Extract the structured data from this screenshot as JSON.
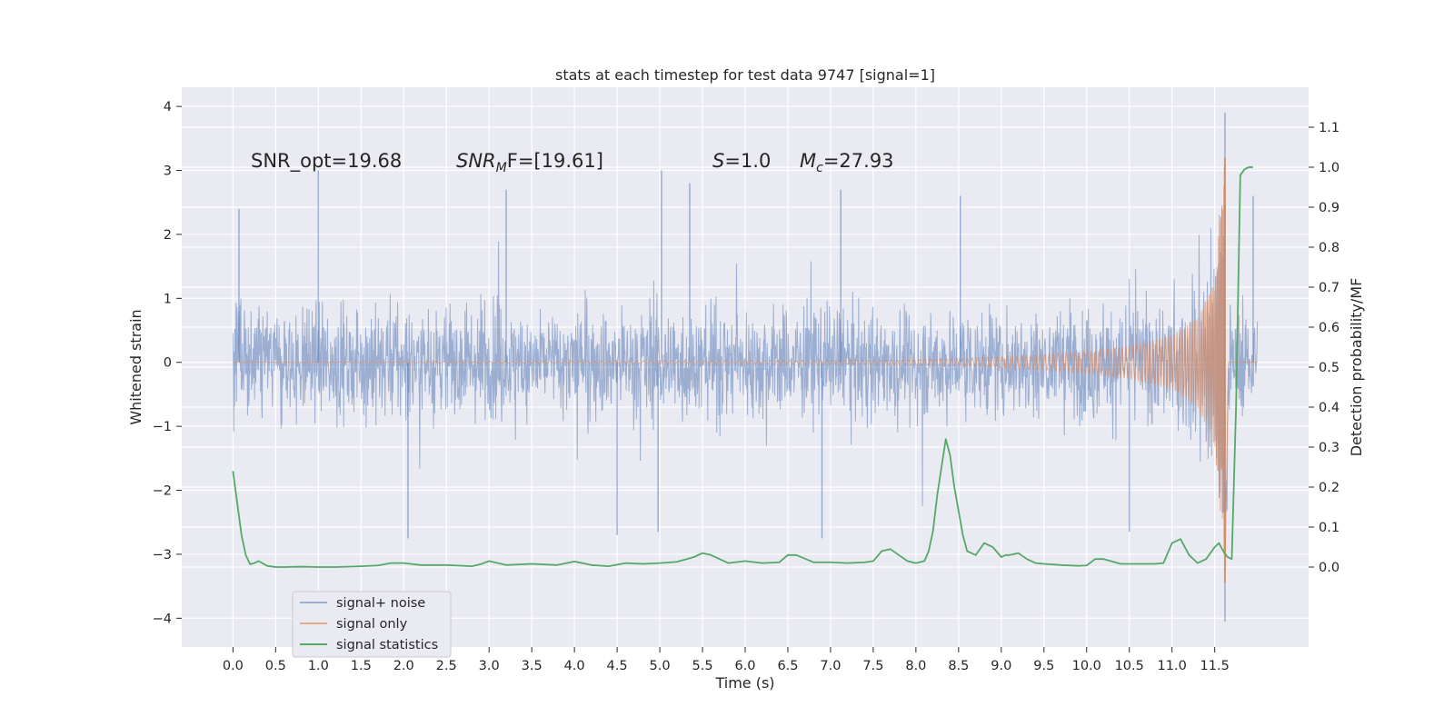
{
  "chart_data": {
    "type": "line",
    "title": "stats at each timestep for test data 9747 [signal=1]",
    "xlabel": "Time (s)",
    "ylabel": "Whitened strain",
    "y2label": "Detection probability/MF",
    "xlim": [
      -0.6,
      12.6
    ],
    "ylim": [
      -4.45,
      4.3
    ],
    "y2lim": [
      -0.2,
      1.2
    ],
    "x_ticks": [
      "0.0",
      "0.5",
      "1.0",
      "1.5",
      "2.0",
      "2.5",
      "3.0",
      "3.5",
      "4.0",
      "4.5",
      "5.0",
      "5.5",
      "6.0",
      "6.5",
      "7.0",
      "7.5",
      "8.0",
      "8.5",
      "9.0",
      "9.5",
      "10.0",
      "10.5",
      "11.0",
      "11.5"
    ],
    "y_ticks": [
      "−4",
      "−3",
      "−2",
      "−1",
      "0",
      "1",
      "2",
      "3",
      "4"
    ],
    "y2_ticks": [
      "0.0",
      "0.1",
      "0.2",
      "0.3",
      "0.4",
      "0.5",
      "0.6",
      "0.7",
      "0.8",
      "0.9",
      "1.0",
      "1.1"
    ],
    "grid": true,
    "legend_position": "lower-left",
    "colors": {
      "background": "#eaeaf2",
      "grid": "#ffffff",
      "noise": "#4c72b0",
      "signal": "#dd8452",
      "stats": "#55a868"
    },
    "annotations": {
      "snr_opt": "SNR_opt=19.68",
      "snr_mf_base": "SNR",
      "snr_mf_sub": "M",
      "snr_mf_rest": "F=[19.61]",
      "s_label": "S",
      "s_value": "=1.0",
      "mc_label": "M",
      "mc_sub": "c",
      "mc_value": "=27.93"
    },
    "series": [
      {
        "name": "signal+ noise",
        "axis": "left",
        "style": "dense whitened noise, |amplitude| ~1.2 typical with spikes to about 3.9 / -4.1",
        "t_range": [
          0.0,
          12.0
        ],
        "spikes": [
          {
            "t": 0.07,
            "v": 2.4
          },
          {
            "t": 1.0,
            "v": 3.0
          },
          {
            "t": 3.2,
            "v": 2.7
          },
          {
            "t": 5.02,
            "v": 3.0
          },
          {
            "t": 5.35,
            "v": 2.8
          },
          {
            "t": 7.12,
            "v": 2.7
          },
          {
            "t": 8.52,
            "v": 2.6
          },
          {
            "t": 11.62,
            "v": 3.9
          },
          {
            "t": 11.95,
            "v": 2.6
          },
          {
            "t": 2.05,
            "v": -2.75
          },
          {
            "t": 4.5,
            "v": -2.7
          },
          {
            "t": 4.98,
            "v": -2.65
          },
          {
            "t": 6.9,
            "v": -2.75
          },
          {
            "t": 10.5,
            "v": -2.65
          },
          {
            "t": 11.62,
            "v": -4.05
          }
        ]
      },
      {
        "name": "signal only",
        "axis": "left",
        "style": "chirp, flat near 0 then growing oscillation",
        "merger_time": 11.62,
        "peak": 3.2,
        "trough": -3.45,
        "envelope": [
          [
            0.0,
            0.0
          ],
          [
            7.5,
            0.03
          ],
          [
            8.5,
            0.06
          ],
          [
            9.5,
            0.12
          ],
          [
            10.0,
            0.17
          ],
          [
            10.5,
            0.26
          ],
          [
            11.0,
            0.42
          ],
          [
            11.3,
            0.7
          ],
          [
            11.5,
            1.3
          ],
          [
            11.62,
            3.2
          ]
        ]
      },
      {
        "name": "signal statistics",
        "axis": "right",
        "x": [
          0.0,
          0.05,
          0.1,
          0.15,
          0.2,
          0.25,
          0.3,
          0.4,
          0.5,
          0.6,
          0.8,
          1.0,
          1.2,
          1.5,
          1.7,
          1.85,
          2.0,
          2.2,
          2.5,
          2.8,
          2.9,
          3.0,
          3.2,
          3.5,
          3.8,
          4.0,
          4.2,
          4.4,
          4.6,
          4.8,
          5.0,
          5.2,
          5.4,
          5.5,
          5.6,
          5.8,
          6.0,
          6.2,
          6.4,
          6.5,
          6.6,
          6.8,
          7.0,
          7.2,
          7.4,
          7.5,
          7.6,
          7.7,
          7.8,
          7.9,
          8.0,
          8.1,
          8.15,
          8.2,
          8.25,
          8.3,
          8.35,
          8.4,
          8.45,
          8.5,
          8.55,
          8.6,
          8.7,
          8.8,
          8.9,
          9.0,
          9.05,
          9.1,
          9.2,
          9.3,
          9.4,
          9.5,
          9.7,
          9.9,
          10.0,
          10.1,
          10.2,
          10.4,
          10.6,
          10.8,
          10.9,
          11.0,
          11.1,
          11.2,
          11.3,
          11.4,
          11.5,
          11.55,
          11.6,
          11.65,
          11.7,
          11.75,
          11.8,
          11.85,
          11.9,
          11.95
        ],
        "values": [
          0.24,
          0.16,
          0.08,
          0.03,
          0.007,
          0.01,
          0.015,
          0.003,
          0.0,
          0.0,
          0.001,
          0.0,
          0.0,
          0.002,
          0.004,
          0.01,
          0.01,
          0.005,
          0.005,
          0.002,
          0.007,
          0.015,
          0.005,
          0.008,
          0.005,
          0.014,
          0.005,
          0.002,
          0.01,
          0.008,
          0.01,
          0.013,
          0.025,
          0.035,
          0.03,
          0.01,
          0.015,
          0.01,
          0.012,
          0.03,
          0.03,
          0.012,
          0.012,
          0.01,
          0.012,
          0.015,
          0.04,
          0.045,
          0.03,
          0.015,
          0.01,
          0.015,
          0.04,
          0.09,
          0.18,
          0.25,
          0.32,
          0.28,
          0.2,
          0.14,
          0.08,
          0.04,
          0.03,
          0.06,
          0.05,
          0.025,
          0.03,
          0.03,
          0.035,
          0.02,
          0.01,
          0.008,
          0.005,
          0.003,
          0.004,
          0.02,
          0.02,
          0.008,
          0.008,
          0.008,
          0.01,
          0.06,
          0.07,
          0.03,
          0.01,
          0.02,
          0.05,
          0.06,
          0.04,
          0.025,
          0.02,
          0.4,
          0.98,
          0.995,
          1.0,
          1.0
        ]
      }
    ]
  }
}
